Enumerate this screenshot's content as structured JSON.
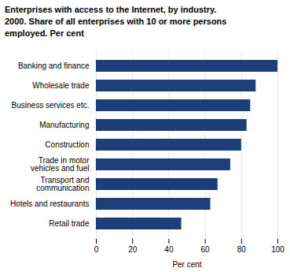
{
  "chart_data": {
    "type": "bar",
    "orientation": "horizontal",
    "title": "Enterprises with access to the Internet, by industry.\n2000. Share of all enterprises with 10 or more persons\nemployed. Per cent",
    "categories": [
      "Retail trade",
      "Hotels and restaurants",
      "Transport and\ncommunication",
      "Trade in motor\nvehicles and fuel",
      "Construction",
      "Manufacturing",
      "Business services etc.",
      "Wholesale trade",
      "Banking and finance"
    ],
    "values": [
      47,
      63,
      67,
      74,
      80,
      83,
      85,
      88,
      100
    ],
    "color": "#1c3f7a",
    "xlabel": "Per cent",
    "xlim": [
      0,
      100
    ],
    "xticks": [
      0,
      20,
      40,
      60,
      80,
      100
    ],
    "grid": true
  }
}
